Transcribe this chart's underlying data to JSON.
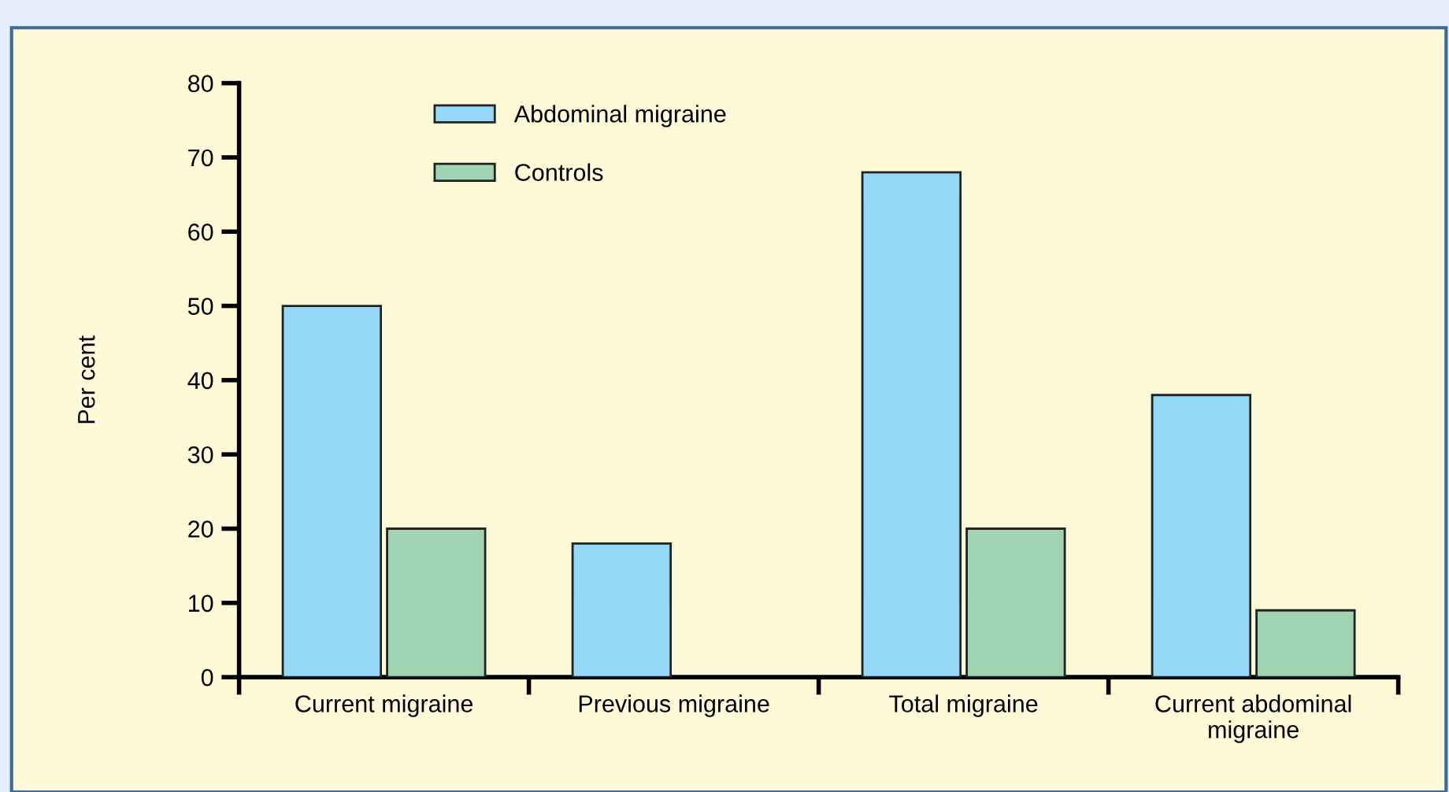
{
  "chart_data": {
    "type": "bar",
    "ylabel": "Per cent",
    "categories": [
      "Current migraine",
      "Previous migraine",
      "Total migraine",
      "Current abdominal\nmigraine"
    ],
    "series": [
      {
        "name": "Abdominal migraine",
        "color": "#93d8f7",
        "values": [
          50,
          18,
          68,
          38
        ]
      },
      {
        "name": "Controls",
        "color": "#a0d4b0",
        "values": [
          20,
          null,
          20,
          9
        ]
      }
    ],
    "ylim": [
      0,
      80
    ],
    "yticks": [
      0,
      10,
      20,
      30,
      40,
      50,
      60,
      70,
      80
    ],
    "grid": false,
    "legend": "top left"
  }
}
